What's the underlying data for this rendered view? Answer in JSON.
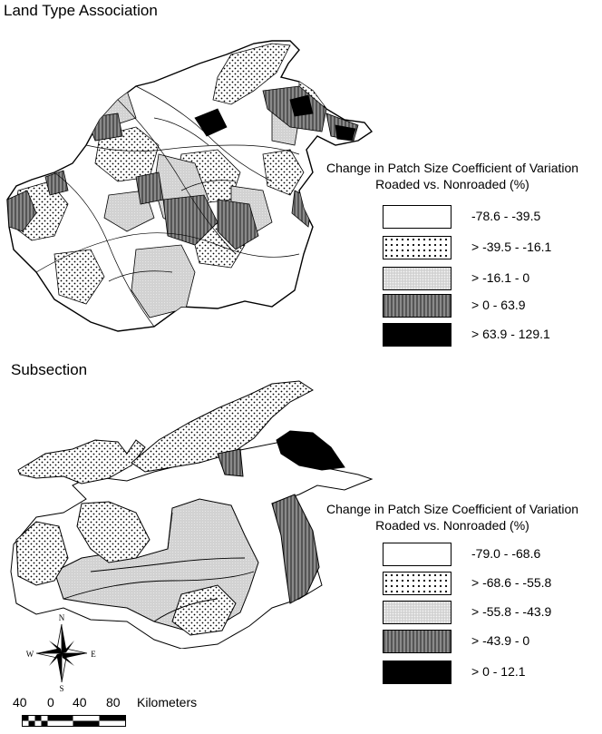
{
  "maps": [
    {
      "title": "Land Type Association",
      "legend_title_line1": "Change in Patch Size Coefficient of Variation",
      "legend_title_line2": "Roaded vs. Nonroaded (%)",
      "classes": [
        {
          "label": "-78.6 - -39.5",
          "pattern": "white"
        },
        {
          "label": "> -39.5 - -16.1",
          "pattern": "dots"
        },
        {
          "label": "> -16.1 - 0",
          "pattern": "light-gray"
        },
        {
          "label": "> 0 - 63.9",
          "pattern": "vertical-stripes"
        },
        {
          "label": "> 63.9 - 129.1",
          "pattern": "black"
        }
      ]
    },
    {
      "title": "Subsection",
      "legend_title_line1": "Change in Patch Size Coefficient of Variation",
      "legend_title_line2": "Roaded vs. Nonroaded (%)",
      "classes": [
        {
          "label": "-79.0 - -68.6",
          "pattern": "white"
        },
        {
          "label": "> -68.6 - -55.8",
          "pattern": "dots"
        },
        {
          "label": "> -55.8 - -43.9",
          "pattern": "light-gray"
        },
        {
          "label": "> -43.9 - 0",
          "pattern": "vertical-stripes"
        },
        {
          "label": "> 0 - 12.1",
          "pattern": "black"
        }
      ]
    }
  ],
  "compass": {
    "n": "N",
    "s": "S",
    "e": "E",
    "w": "W"
  },
  "scale": {
    "ticks": [
      "40",
      "0",
      "40",
      "80"
    ],
    "unit": "Kilometers"
  }
}
